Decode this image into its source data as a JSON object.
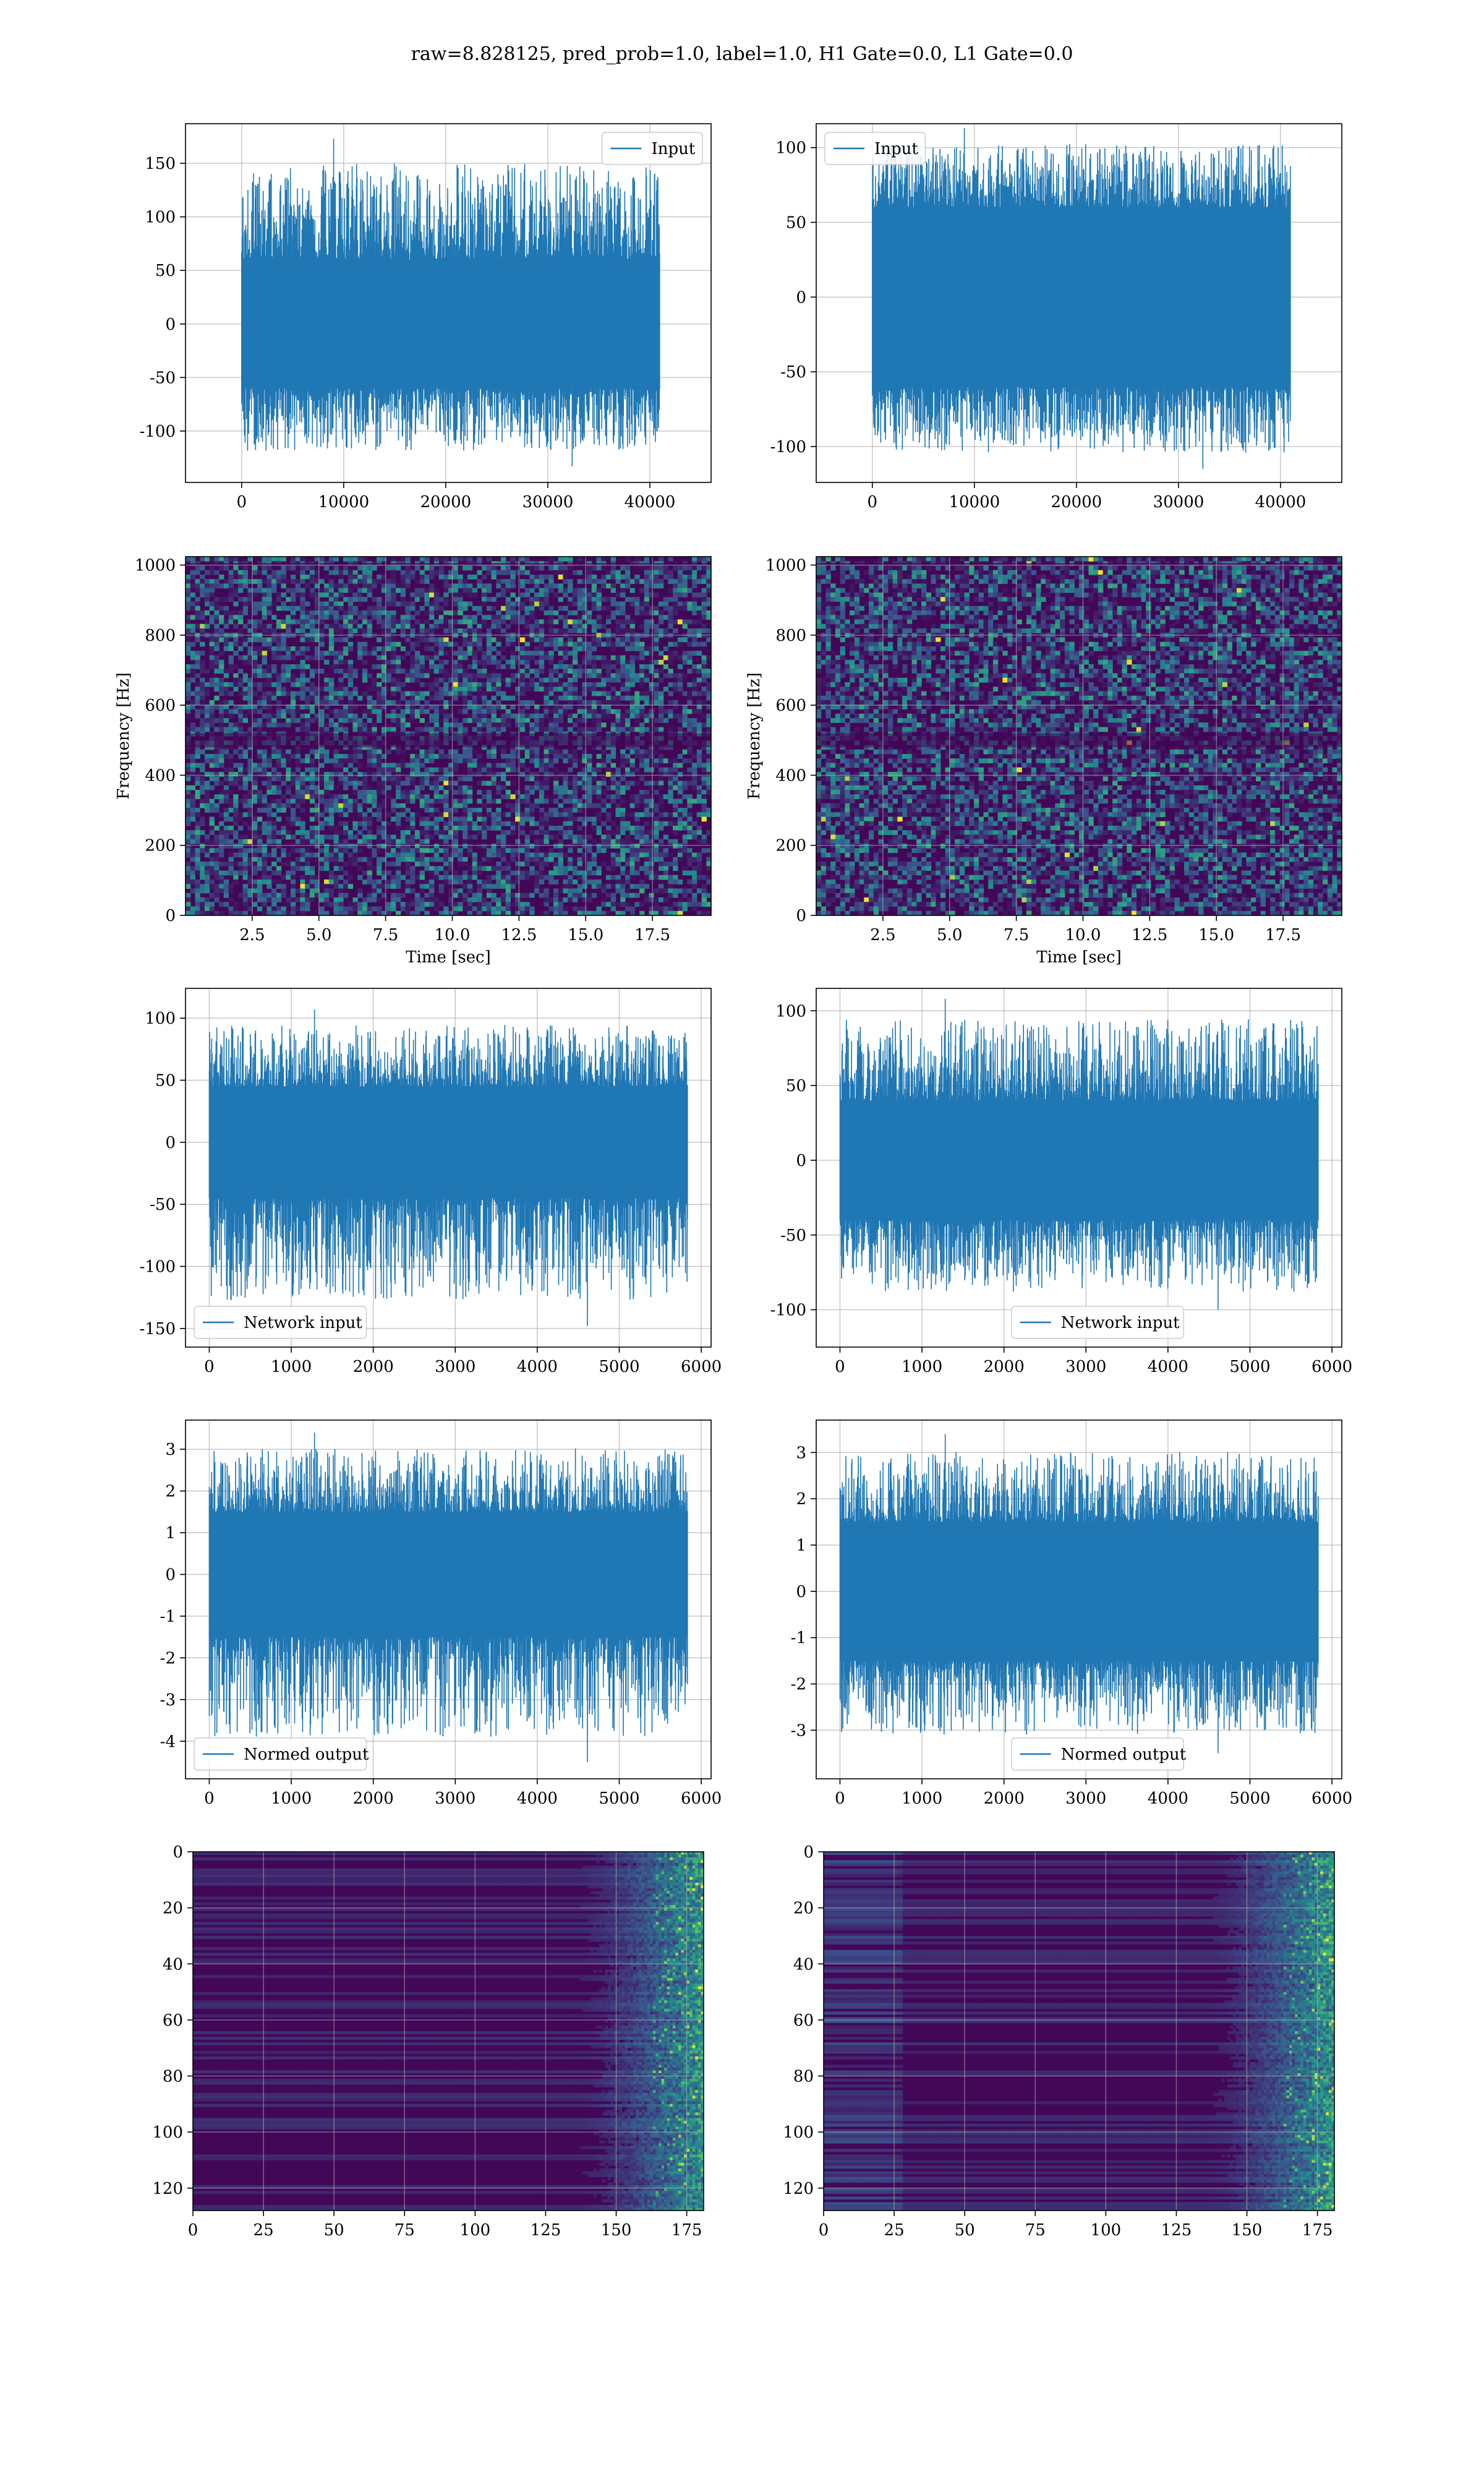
{
  "suptitle": "raw=8.828125, pred_prob=1.0, label=1.0, H1 Gate=0.0, L1 Gate=0.0",
  "colors": {
    "series": "#1f77b4",
    "grid": "#b0b0b0",
    "viridis_low": "#440154",
    "viridis_high": "#fde725"
  },
  "chart_data": [
    {
      "id": "h1-input",
      "type": "line",
      "grid": true,
      "legend": {
        "label": "Input",
        "loc": "upper right"
      },
      "xlim": [
        -5500,
        46000
      ],
      "ylim": [
        -148,
        187
      ],
      "xticks": [
        0,
        10000,
        20000,
        30000,
        40000
      ],
      "yticks": [
        -100,
        -50,
        0,
        50,
        100,
        150
      ],
      "series": [
        {
          "n": 40960,
          "x_range": [
            0,
            40960
          ],
          "band": [
            -60,
            60
          ],
          "max": 173,
          "min": -133
        }
      ]
    },
    {
      "id": "l1-input",
      "type": "line",
      "grid": true,
      "legend": {
        "label": "Input",
        "loc": "upper left"
      },
      "xlim": [
        -5500,
        46000
      ],
      "ylim": [
        -124,
        116
      ],
      "xticks": [
        0,
        10000,
        20000,
        30000,
        40000
      ],
      "yticks": [
        -100,
        -50,
        0,
        50,
        100
      ],
      "series": [
        {
          "n": 40960,
          "x_range": [
            0,
            40960
          ],
          "band": [
            -60,
            60
          ],
          "max": 113,
          "min": -115
        }
      ]
    },
    {
      "id": "h1-spectrogram",
      "type": "heatmap",
      "grid": true,
      "colormap": "viridis",
      "xlabel": "Time [sec]",
      "ylabel": "Frequency [Hz]",
      "xlim": [
        0,
        19.7
      ],
      "ylim": [
        0,
        1024
      ],
      "xticks": [
        2.5,
        5.0,
        7.5,
        10.0,
        12.5,
        15.0,
        17.5
      ],
      "yticks": [
        0,
        200,
        400,
        600,
        800,
        1000
      ]
    },
    {
      "id": "l1-spectrogram",
      "type": "heatmap",
      "grid": true,
      "colormap": "viridis",
      "xlabel": "Time [sec]",
      "ylabel": "Frequency [Hz]",
      "xlim": [
        0,
        19.7
      ],
      "ylim": [
        0,
        1024
      ],
      "xticks": [
        2.5,
        5.0,
        7.5,
        10.0,
        12.5,
        15.0,
        17.5
      ],
      "yticks": [
        0,
        200,
        400,
        600,
        800,
        1000
      ]
    },
    {
      "id": "h1-network-input",
      "type": "line",
      "grid": true,
      "legend": {
        "label": "Network input",
        "loc": "lower left"
      },
      "xlim": [
        -290,
        6120
      ],
      "ylim": [
        -165,
        124
      ],
      "xticks": [
        0,
        1000,
        2000,
        3000,
        4000,
        5000,
        6000
      ],
      "yticks": [
        -150,
        -100,
        -50,
        0,
        50,
        100
      ],
      "series": [
        {
          "n": 5832,
          "x_range": [
            0,
            5832
          ],
          "band": [
            -45,
            45
          ],
          "max": 107,
          "min": -148
        }
      ]
    },
    {
      "id": "l1-network-input",
      "type": "line",
      "grid": true,
      "legend": {
        "label": "Network input",
        "loc": "lower center"
      },
      "xlim": [
        -290,
        6120
      ],
      "ylim": [
        -125,
        115
      ],
      "xticks": [
        0,
        1000,
        2000,
        3000,
        4000,
        5000,
        6000
      ],
      "yticks": [
        -100,
        -50,
        0,
        50,
        100
      ],
      "series": [
        {
          "n": 5832,
          "x_range": [
            0,
            5832
          ],
          "band": [
            -40,
            40
          ],
          "max": 108,
          "min": -100
        }
      ]
    },
    {
      "id": "h1-normed-output",
      "type": "line",
      "grid": true,
      "legend": {
        "label": "Normed output",
        "loc": "lower left"
      },
      "xlim": [
        -290,
        6120
      ],
      "ylim": [
        -4.9,
        3.7
      ],
      "xticks": [
        0,
        1000,
        2000,
        3000,
        4000,
        5000,
        6000
      ],
      "yticks": [
        -4,
        -3,
        -2,
        -1,
        0,
        1,
        2,
        3
      ],
      "series": [
        {
          "n": 5832,
          "x_range": [
            0,
            5832
          ],
          "band": [
            -1.5,
            1.5
          ],
          "max": 3.4,
          "min": -4.5
        }
      ]
    },
    {
      "id": "l1-normed-output",
      "type": "line",
      "grid": true,
      "legend": {
        "label": "Normed output",
        "loc": "lower center"
      },
      "xlim": [
        -290,
        6120
      ],
      "ylim": [
        -4.05,
        3.7
      ],
      "xticks": [
        0,
        1000,
        2000,
        3000,
        4000,
        5000,
        6000
      ],
      "yticks": [
        -3,
        -2,
        -1,
        0,
        1,
        2,
        3
      ],
      "series": [
        {
          "n": 5832,
          "x_range": [
            0,
            5832
          ],
          "band": [
            -1.5,
            1.5
          ],
          "max": 3.4,
          "min": -3.5
        }
      ]
    },
    {
      "id": "h1-feature-map",
      "type": "heatmap",
      "grid": true,
      "colormap": "viridis",
      "y_inverted": true,
      "xlim": [
        0,
        181
      ],
      "ylim": [
        0,
        128
      ],
      "xticks": [
        0,
        25,
        50,
        75,
        100,
        125,
        150,
        175
      ],
      "yticks": [
        0,
        20,
        40,
        60,
        80,
        100,
        120
      ]
    },
    {
      "id": "l1-feature-map",
      "type": "heatmap",
      "grid": true,
      "colormap": "viridis",
      "y_inverted": true,
      "xlim": [
        0,
        181
      ],
      "ylim": [
        0,
        128
      ],
      "xticks": [
        0,
        25,
        50,
        75,
        100,
        125,
        150,
        175
      ],
      "yticks": [
        0,
        20,
        40,
        60,
        80,
        100,
        120
      ]
    }
  ]
}
